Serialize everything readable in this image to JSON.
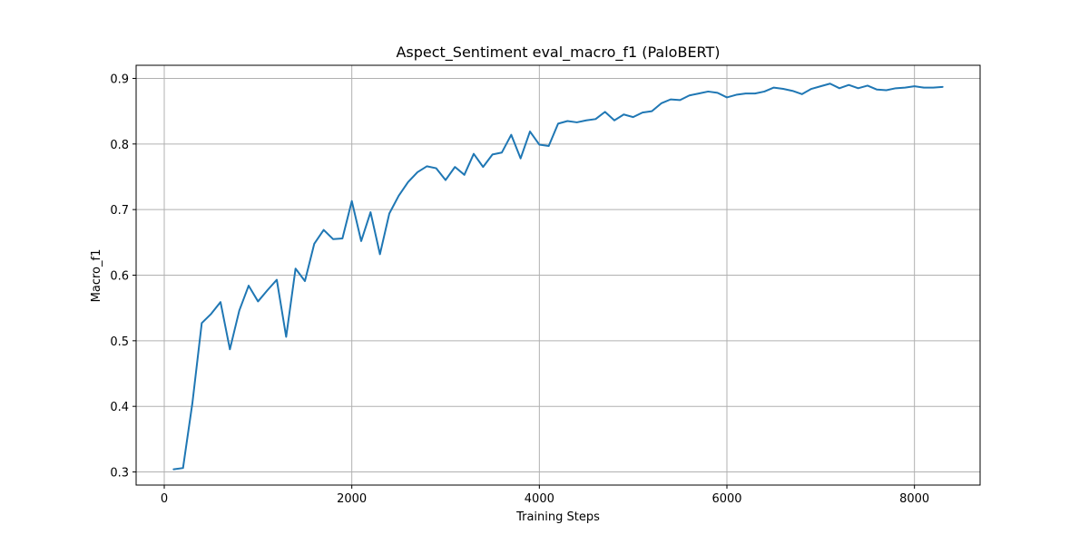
{
  "chart_data": {
    "type": "line",
    "title": "Aspect_Sentiment eval_macro_f1 (PaloBERT)",
    "xlabel": "Training Steps",
    "ylabel": "Macro_f1",
    "xlim": [
      -300,
      8700
    ],
    "ylim": [
      0.28,
      0.92
    ],
    "x_ticks": [
      0,
      2000,
      4000,
      6000,
      8000
    ],
    "y_ticks": [
      0.3,
      0.4,
      0.5,
      0.6,
      0.7,
      0.8,
      0.9
    ],
    "x_tick_labels": [
      "0",
      "2000",
      "4000",
      "6000",
      "8000"
    ],
    "y_tick_labels": [
      "0.3",
      "0.4",
      "0.5",
      "0.6",
      "0.7",
      "0.8",
      "0.9"
    ],
    "grid": true,
    "series_color": "#1f77b4",
    "series": [
      {
        "x": [
          100,
          200,
          300,
          400,
          500,
          600,
          700,
          800,
          900,
          1000,
          1100,
          1200,
          1300,
          1400,
          1500,
          1600,
          1700,
          1800,
          1900,
          2000,
          2100,
          2200,
          2300,
          2400,
          2500,
          2600,
          2700,
          2800,
          2900,
          3000,
          3100,
          3200,
          3300,
          3400,
          3500,
          3600,
          3700,
          3800,
          3900,
          4000,
          4100,
          4200,
          4300,
          4400,
          4500,
          4600,
          4700,
          4800,
          4900,
          5000,
          5100,
          5200,
          5300,
          5400,
          5500,
          5600,
          5700,
          5800,
          5900,
          6000,
          6100,
          6200,
          6300,
          6400,
          6500,
          6600,
          6700,
          6800,
          6900,
          7000,
          7100,
          7200,
          7300,
          7400,
          7500,
          7600,
          7700,
          7800,
          7900,
          8000,
          8100,
          8200,
          8300
        ],
        "values": [
          0.304,
          0.306,
          0.405,
          0.527,
          0.541,
          0.559,
          0.487,
          0.546,
          0.584,
          0.56,
          0.577,
          0.593,
          0.506,
          0.61,
          0.591,
          0.648,
          0.669,
          0.655,
          0.656,
          0.713,
          0.652,
          0.696,
          0.632,
          0.694,
          0.721,
          0.742,
          0.757,
          0.766,
          0.763,
          0.745,
          0.765,
          0.753,
          0.785,
          0.765,
          0.784,
          0.787,
          0.814,
          0.778,
          0.819,
          0.799,
          0.797,
          0.831,
          0.835,
          0.833,
          0.836,
          0.838,
          0.849,
          0.836,
          0.845,
          0.841,
          0.848,
          0.85,
          0.862,
          0.868,
          0.867,
          0.874,
          0.877,
          0.88,
          0.878,
          0.871,
          0.875,
          0.877,
          0.877,
          0.88,
          0.886,
          0.884,
          0.881,
          0.876,
          0.884,
          0.888,
          0.892,
          0.885,
          0.89,
          0.885,
          0.889,
          0.883,
          0.882,
          0.885,
          0.886,
          0.888,
          0.886,
          0.886,
          0.887
        ]
      }
    ]
  }
}
